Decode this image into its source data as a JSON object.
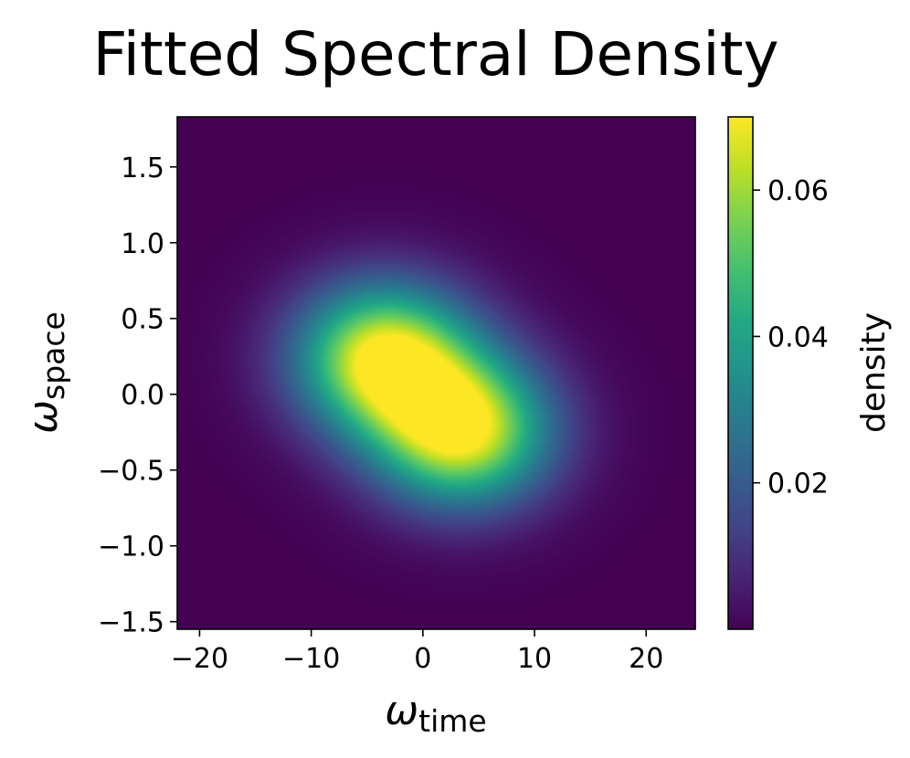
{
  "chart_data": {
    "type": "heatmap",
    "title": "Fitted Spectral Density",
    "xlabel": {
      "symbol": "ω",
      "subscript": "time"
    },
    "ylabel": {
      "symbol": "ω",
      "subscript": "space"
    },
    "xlim": [
      -22,
      24.4
    ],
    "ylim": [
      -1.55,
      1.83
    ],
    "xticks": [
      -20,
      -10,
      0,
      10,
      20
    ],
    "xtick_labels": [
      "−20",
      "−10",
      "0",
      "10",
      "20"
    ],
    "yticks": [
      -1.5,
      -1.0,
      -0.5,
      0.0,
      0.5,
      1.0,
      1.5
    ],
    "ytick_labels": [
      "−1.5",
      "−1.0",
      "−0.5",
      "0.0",
      "0.5",
      "1.0",
      "1.5"
    ],
    "colormap": "viridis",
    "colorbar": {
      "label": "density",
      "range": [
        0.0,
        0.07
      ],
      "ticks": [
        0.02,
        0.04,
        0.06
      ],
      "tick_labels": [
        "0.02",
        "0.04",
        "0.06"
      ]
    },
    "peaks": [
      {
        "x": -3.5,
        "y": 0.24,
        "density": 0.07
      },
      {
        "x": 3.5,
        "y": -0.24,
        "density": 0.07
      }
    ],
    "peak_width": {
      "x": 5.5,
      "y": 0.34
    }
  }
}
